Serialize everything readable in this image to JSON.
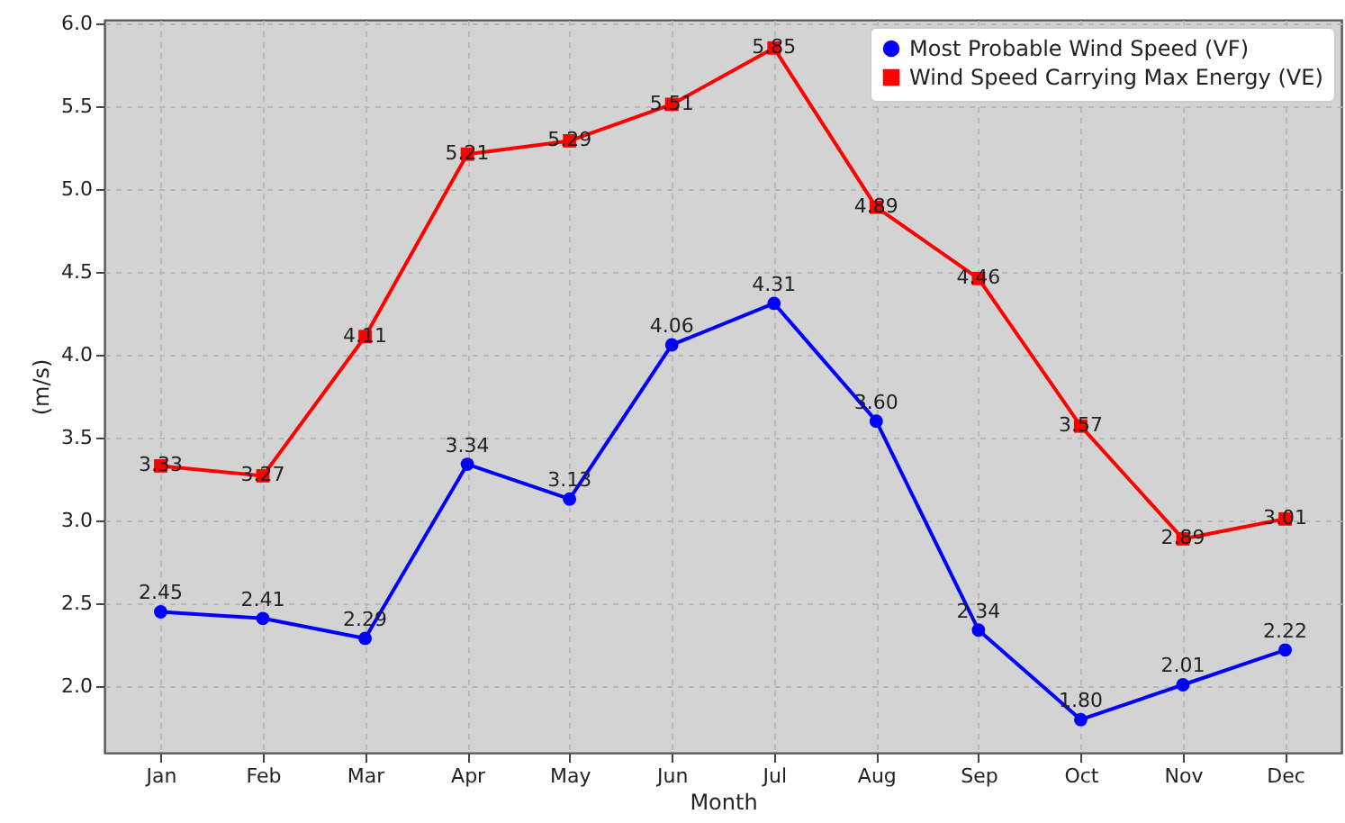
{
  "chart_data": {
    "type": "line",
    "xlabel": "Month",
    "ylabel": "(m/s)",
    "categories": [
      "Jan",
      "Feb",
      "Mar",
      "Apr",
      "May",
      "Jun",
      "Jul",
      "Aug",
      "Sep",
      "Oct",
      "Nov",
      "Dec"
    ],
    "series": [
      {
        "name": "Most Probable Wind Speed (VF)",
        "color": "#0000ff",
        "marker": "circle",
        "values": [
          2.45,
          2.41,
          2.29,
          3.34,
          3.13,
          4.06,
          4.31,
          3.6,
          2.34,
          1.8,
          2.01,
          2.22
        ],
        "value_labels": [
          "2.45",
          "2.41",
          "2.29",
          "3.34",
          "3.13",
          "4.06",
          "4.31",
          "3.60",
          "2.34",
          "1.80",
          "2.01",
          "2.22"
        ]
      },
      {
        "name": "Wind Speed Carrying Max Energy (VE)",
        "color": "#ff0000",
        "marker": "square",
        "values": [
          3.33,
          3.27,
          4.11,
          5.21,
          5.29,
          5.51,
          5.85,
          4.89,
          4.46,
          3.57,
          2.89,
          3.01
        ],
        "value_labels": [
          "3.33",
          "3.27",
          "4.11",
          "5.21",
          "5.29",
          "5.51",
          "5.85",
          "4.89",
          "4.46",
          "3.57",
          "2.89",
          "3.01"
        ]
      }
    ],
    "ylim": [
      1.6,
      6.02
    ],
    "yticks": [
      {
        "value": 2,
        "label": "2.0"
      },
      2.5,
      {
        "value": 3,
        "label": "3.0"
      },
      3.5,
      {
        "value": 4,
        "label": "4.0"
      },
      4.5,
      {
        "value": 5,
        "label": "5.0"
      },
      5.5,
      {
        "value": 6,
        "label": "6.0"
      }
    ],
    "grid": true,
    "legend": "top right",
    "line_style": "solid"
  }
}
